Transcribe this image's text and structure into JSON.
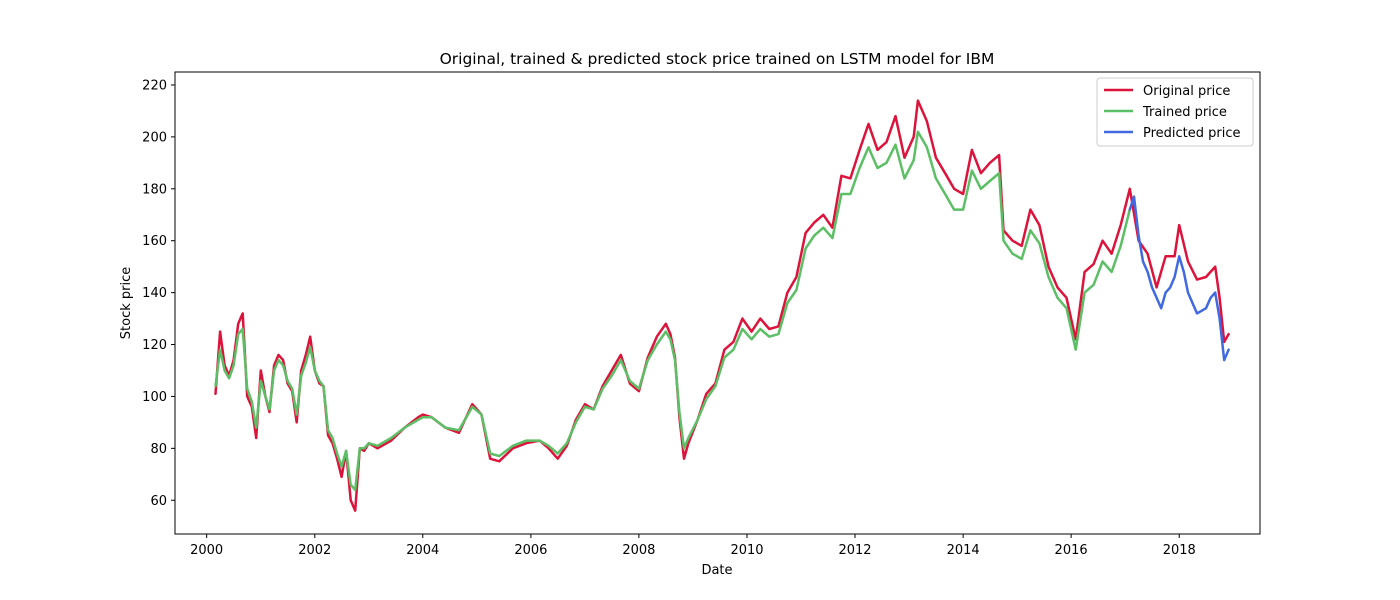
{
  "chart_data": {
    "type": "line",
    "title": "Original, trained & predicted stock price trained on LSTM model for IBM",
    "xlabel": "Date",
    "ylabel": "Stock price",
    "xlim": [
      "1999-06-01",
      "2019-07-01"
    ],
    "ylim": [
      47,
      225
    ],
    "x_ticks": [
      "2000",
      "2002",
      "2004",
      "2006",
      "2008",
      "2010",
      "2012",
      "2014",
      "2016",
      "2018"
    ],
    "y_ticks": [
      60,
      80,
      100,
      120,
      140,
      160,
      180,
      200,
      220
    ],
    "grid": false,
    "legend_position": "top-right",
    "series": [
      {
        "name": "Original price",
        "color": "#dc143c",
        "points": [
          [
            "2000-03-01",
            101
          ],
          [
            "2000-04-01",
            125
          ],
          [
            "2000-05-01",
            112
          ],
          [
            "2000-06-01",
            108
          ],
          [
            "2000-07-01",
            114
          ],
          [
            "2000-08-01",
            128
          ],
          [
            "2000-09-01",
            132
          ],
          [
            "2000-10-01",
            100
          ],
          [
            "2000-11-01",
            96
          ],
          [
            "2000-12-01",
            84
          ],
          [
            "2001-01-01",
            110
          ],
          [
            "2001-02-01",
            100
          ],
          [
            "2001-03-01",
            94
          ],
          [
            "2001-04-01",
            112
          ],
          [
            "2001-05-01",
            116
          ],
          [
            "2001-06-01",
            114
          ],
          [
            "2001-07-01",
            105
          ],
          [
            "2001-08-01",
            102
          ],
          [
            "2001-09-01",
            90
          ],
          [
            "2001-10-01",
            110
          ],
          [
            "2001-11-01",
            116
          ],
          [
            "2001-12-01",
            123
          ],
          [
            "2002-01-01",
            110
          ],
          [
            "2002-02-01",
            105
          ],
          [
            "2002-03-01",
            104
          ],
          [
            "2002-04-01",
            85
          ],
          [
            "2002-05-01",
            82
          ],
          [
            "2002-06-01",
            76
          ],
          [
            "2002-07-01",
            69
          ],
          [
            "2002-08-01",
            79
          ],
          [
            "2002-09-01",
            60
          ],
          [
            "2002-10-01",
            56
          ],
          [
            "2002-11-01",
            80
          ],
          [
            "2002-12-01",
            79
          ],
          [
            "2003-01-01",
            82
          ],
          [
            "2003-03-01",
            80
          ],
          [
            "2003-06-01",
            83
          ],
          [
            "2003-09-01",
            88
          ],
          [
            "2003-12-01",
            92
          ],
          [
            "2004-01-01",
            93
          ],
          [
            "2004-03-01",
            92
          ],
          [
            "2004-06-01",
            88
          ],
          [
            "2004-09-01",
            86
          ],
          [
            "2004-12-01",
            97
          ],
          [
            "2005-02-01",
            93
          ],
          [
            "2005-04-01",
            76
          ],
          [
            "2005-06-01",
            75
          ],
          [
            "2005-09-01",
            80
          ],
          [
            "2005-12-01",
            82
          ],
          [
            "2006-03-01",
            83
          ],
          [
            "2006-05-01",
            80
          ],
          [
            "2006-07-01",
            76
          ],
          [
            "2006-09-01",
            81
          ],
          [
            "2006-11-01",
            91
          ],
          [
            "2007-01-01",
            97
          ],
          [
            "2007-03-01",
            95
          ],
          [
            "2007-05-01",
            104
          ],
          [
            "2007-07-01",
            110
          ],
          [
            "2007-09-01",
            116
          ],
          [
            "2007-11-01",
            105
          ],
          [
            "2008-01-01",
            102
          ],
          [
            "2008-03-01",
            115
          ],
          [
            "2008-05-01",
            123
          ],
          [
            "2008-07-01",
            128
          ],
          [
            "2008-08-01",
            124
          ],
          [
            "2008-09-01",
            115
          ],
          [
            "2008-10-01",
            92
          ],
          [
            "2008-11-01",
            76
          ],
          [
            "2008-12-01",
            82
          ],
          [
            "2009-02-01",
            91
          ],
          [
            "2009-04-01",
            101
          ],
          [
            "2009-06-01",
            105
          ],
          [
            "2009-08-01",
            118
          ],
          [
            "2009-10-01",
            121
          ],
          [
            "2009-12-01",
            130
          ],
          [
            "2010-02-01",
            125
          ],
          [
            "2010-04-01",
            130
          ],
          [
            "2010-06-01",
            126
          ],
          [
            "2010-08-01",
            127
          ],
          [
            "2010-10-01",
            140
          ],
          [
            "2010-12-01",
            146
          ],
          [
            "2011-02-01",
            163
          ],
          [
            "2011-04-01",
            167
          ],
          [
            "2011-06-01",
            170
          ],
          [
            "2011-08-01",
            165
          ],
          [
            "2011-10-01",
            185
          ],
          [
            "2011-12-01",
            184
          ],
          [
            "2012-02-01",
            195
          ],
          [
            "2012-04-01",
            205
          ],
          [
            "2012-06-01",
            195
          ],
          [
            "2012-08-01",
            198
          ],
          [
            "2012-10-01",
            208
          ],
          [
            "2012-12-01",
            192
          ],
          [
            "2013-02-01",
            200
          ],
          [
            "2013-03-01",
            214
          ],
          [
            "2013-05-01",
            206
          ],
          [
            "2013-07-01",
            192
          ],
          [
            "2013-09-01",
            186
          ],
          [
            "2013-11-01",
            180
          ],
          [
            "2014-01-01",
            178
          ],
          [
            "2014-03-01",
            195
          ],
          [
            "2014-05-01",
            186
          ],
          [
            "2014-07-01",
            190
          ],
          [
            "2014-09-01",
            193
          ],
          [
            "2014-10-01",
            164
          ],
          [
            "2014-12-01",
            160
          ],
          [
            "2015-02-01",
            158
          ],
          [
            "2015-04-01",
            172
          ],
          [
            "2015-06-01",
            166
          ],
          [
            "2015-08-01",
            150
          ],
          [
            "2015-10-01",
            142
          ],
          [
            "2015-12-01",
            138
          ],
          [
            "2016-02-01",
            122
          ],
          [
            "2016-04-01",
            148
          ],
          [
            "2016-06-01",
            151
          ],
          [
            "2016-08-01",
            160
          ],
          [
            "2016-10-01",
            155
          ],
          [
            "2016-12-01",
            166
          ],
          [
            "2017-02-01",
            180
          ],
          [
            "2017-04-01",
            160
          ],
          [
            "2017-06-01",
            155
          ],
          [
            "2017-08-01",
            142
          ],
          [
            "2017-10-01",
            154
          ],
          [
            "2017-12-01",
            154
          ],
          [
            "2018-01-01",
            166
          ],
          [
            "2018-03-01",
            152
          ],
          [
            "2018-05-01",
            145
          ],
          [
            "2018-07-01",
            146
          ],
          [
            "2018-09-01",
            150
          ],
          [
            "2018-10-01",
            138
          ],
          [
            "2018-11-01",
            121
          ],
          [
            "2018-12-01",
            124
          ]
        ]
      },
      {
        "name": "Trained price",
        "color": "#5cbf66",
        "points": [
          [
            "2000-03-01",
            104
          ],
          [
            "2000-04-01",
            118
          ],
          [
            "2000-05-01",
            110
          ],
          [
            "2000-06-01",
            107
          ],
          [
            "2000-07-01",
            112
          ],
          [
            "2000-08-01",
            124
          ],
          [
            "2000-09-01",
            126
          ],
          [
            "2000-10-01",
            103
          ],
          [
            "2000-11-01",
            98
          ],
          [
            "2000-12-01",
            88
          ],
          [
            "2001-01-01",
            106
          ],
          [
            "2001-02-01",
            100
          ],
          [
            "2001-03-01",
            95
          ],
          [
            "2001-04-01",
            110
          ],
          [
            "2001-05-01",
            114
          ],
          [
            "2001-06-01",
            112
          ],
          [
            "2001-07-01",
            106
          ],
          [
            "2001-08-01",
            103
          ],
          [
            "2001-09-01",
            93
          ],
          [
            "2001-10-01",
            108
          ],
          [
            "2001-11-01",
            113
          ],
          [
            "2001-12-01",
            119
          ],
          [
            "2002-01-01",
            110
          ],
          [
            "2002-02-01",
            106
          ],
          [
            "2002-03-01",
            104
          ],
          [
            "2002-04-01",
            87
          ],
          [
            "2002-05-01",
            84
          ],
          [
            "2002-06-01",
            78
          ],
          [
            "2002-07-01",
            73
          ],
          [
            "2002-08-01",
            79
          ],
          [
            "2002-09-01",
            66
          ],
          [
            "2002-10-01",
            64
          ],
          [
            "2002-11-01",
            80
          ],
          [
            "2002-12-01",
            80
          ],
          [
            "2003-01-01",
            82
          ],
          [
            "2003-03-01",
            81
          ],
          [
            "2003-06-01",
            84
          ],
          [
            "2003-09-01",
            88
          ],
          [
            "2003-12-01",
            91
          ],
          [
            "2004-01-01",
            92
          ],
          [
            "2004-03-01",
            92
          ],
          [
            "2004-06-01",
            88
          ],
          [
            "2004-09-01",
            87
          ],
          [
            "2004-12-01",
            96
          ],
          [
            "2005-02-01",
            93
          ],
          [
            "2005-04-01",
            78
          ],
          [
            "2005-06-01",
            77
          ],
          [
            "2005-09-01",
            81
          ],
          [
            "2005-12-01",
            83
          ],
          [
            "2006-03-01",
            83
          ],
          [
            "2006-05-01",
            81
          ],
          [
            "2006-07-01",
            78
          ],
          [
            "2006-09-01",
            82
          ],
          [
            "2006-11-01",
            90
          ],
          [
            "2007-01-01",
            96
          ],
          [
            "2007-03-01",
            95
          ],
          [
            "2007-05-01",
            103
          ],
          [
            "2007-07-01",
            108
          ],
          [
            "2007-09-01",
            114
          ],
          [
            "2007-11-01",
            106
          ],
          [
            "2008-01-01",
            103
          ],
          [
            "2008-03-01",
            114
          ],
          [
            "2008-05-01",
            120
          ],
          [
            "2008-07-01",
            125
          ],
          [
            "2008-08-01",
            122
          ],
          [
            "2008-09-01",
            114
          ],
          [
            "2008-10-01",
            94
          ],
          [
            "2008-11-01",
            80
          ],
          [
            "2008-12-01",
            84
          ],
          [
            "2009-02-01",
            91
          ],
          [
            "2009-04-01",
            99
          ],
          [
            "2009-06-01",
            104
          ],
          [
            "2009-08-01",
            115
          ],
          [
            "2009-10-01",
            118
          ],
          [
            "2009-12-01",
            126
          ],
          [
            "2010-02-01",
            122
          ],
          [
            "2010-04-01",
            126
          ],
          [
            "2010-06-01",
            123
          ],
          [
            "2010-08-01",
            124
          ],
          [
            "2010-10-01",
            136
          ],
          [
            "2010-12-01",
            141
          ],
          [
            "2011-02-01",
            157
          ],
          [
            "2011-04-01",
            162
          ],
          [
            "2011-06-01",
            165
          ],
          [
            "2011-08-01",
            161
          ],
          [
            "2011-10-01",
            178
          ],
          [
            "2011-12-01",
            178
          ],
          [
            "2012-02-01",
            188
          ],
          [
            "2012-04-01",
            196
          ],
          [
            "2012-06-01",
            188
          ],
          [
            "2012-08-01",
            190
          ],
          [
            "2012-10-01",
            197
          ],
          [
            "2012-12-01",
            184
          ],
          [
            "2013-02-01",
            191
          ],
          [
            "2013-03-01",
            202
          ],
          [
            "2013-05-01",
            196
          ],
          [
            "2013-07-01",
            184
          ],
          [
            "2013-09-01",
            178
          ],
          [
            "2013-11-01",
            172
          ],
          [
            "2014-01-01",
            172
          ],
          [
            "2014-03-01",
            187
          ],
          [
            "2014-05-01",
            180
          ],
          [
            "2014-07-01",
            183
          ],
          [
            "2014-09-01",
            186
          ],
          [
            "2014-10-01",
            160
          ],
          [
            "2014-12-01",
            155
          ],
          [
            "2015-02-01",
            153
          ],
          [
            "2015-04-01",
            164
          ],
          [
            "2015-06-01",
            159
          ],
          [
            "2015-08-01",
            146
          ],
          [
            "2015-10-01",
            138
          ],
          [
            "2015-12-01",
            134
          ],
          [
            "2016-02-01",
            118
          ],
          [
            "2016-04-01",
            140
          ],
          [
            "2016-06-01",
            143
          ],
          [
            "2016-08-01",
            152
          ],
          [
            "2016-10-01",
            148
          ],
          [
            "2016-12-01",
            158
          ],
          [
            "2017-02-01",
            172
          ]
        ]
      },
      {
        "name": "Predicted price",
        "color": "#4169e1",
        "points": [
          [
            "2017-02-01",
            172
          ],
          [
            "2017-03-01",
            177
          ],
          [
            "2017-04-01",
            162
          ],
          [
            "2017-05-01",
            152
          ],
          [
            "2017-06-01",
            148
          ],
          [
            "2017-07-01",
            142
          ],
          [
            "2017-08-01",
            138
          ],
          [
            "2017-09-01",
            134
          ],
          [
            "2017-10-01",
            140
          ],
          [
            "2017-11-01",
            142
          ],
          [
            "2017-12-01",
            146
          ],
          [
            "2018-01-01",
            154
          ],
          [
            "2018-02-01",
            148
          ],
          [
            "2018-03-01",
            140
          ],
          [
            "2018-04-01",
            136
          ],
          [
            "2018-05-01",
            132
          ],
          [
            "2018-06-01",
            133
          ],
          [
            "2018-07-01",
            134
          ],
          [
            "2018-08-01",
            138
          ],
          [
            "2018-09-01",
            140
          ],
          [
            "2018-10-01",
            130
          ],
          [
            "2018-11-01",
            114
          ],
          [
            "2018-12-01",
            118
          ]
        ]
      }
    ]
  }
}
